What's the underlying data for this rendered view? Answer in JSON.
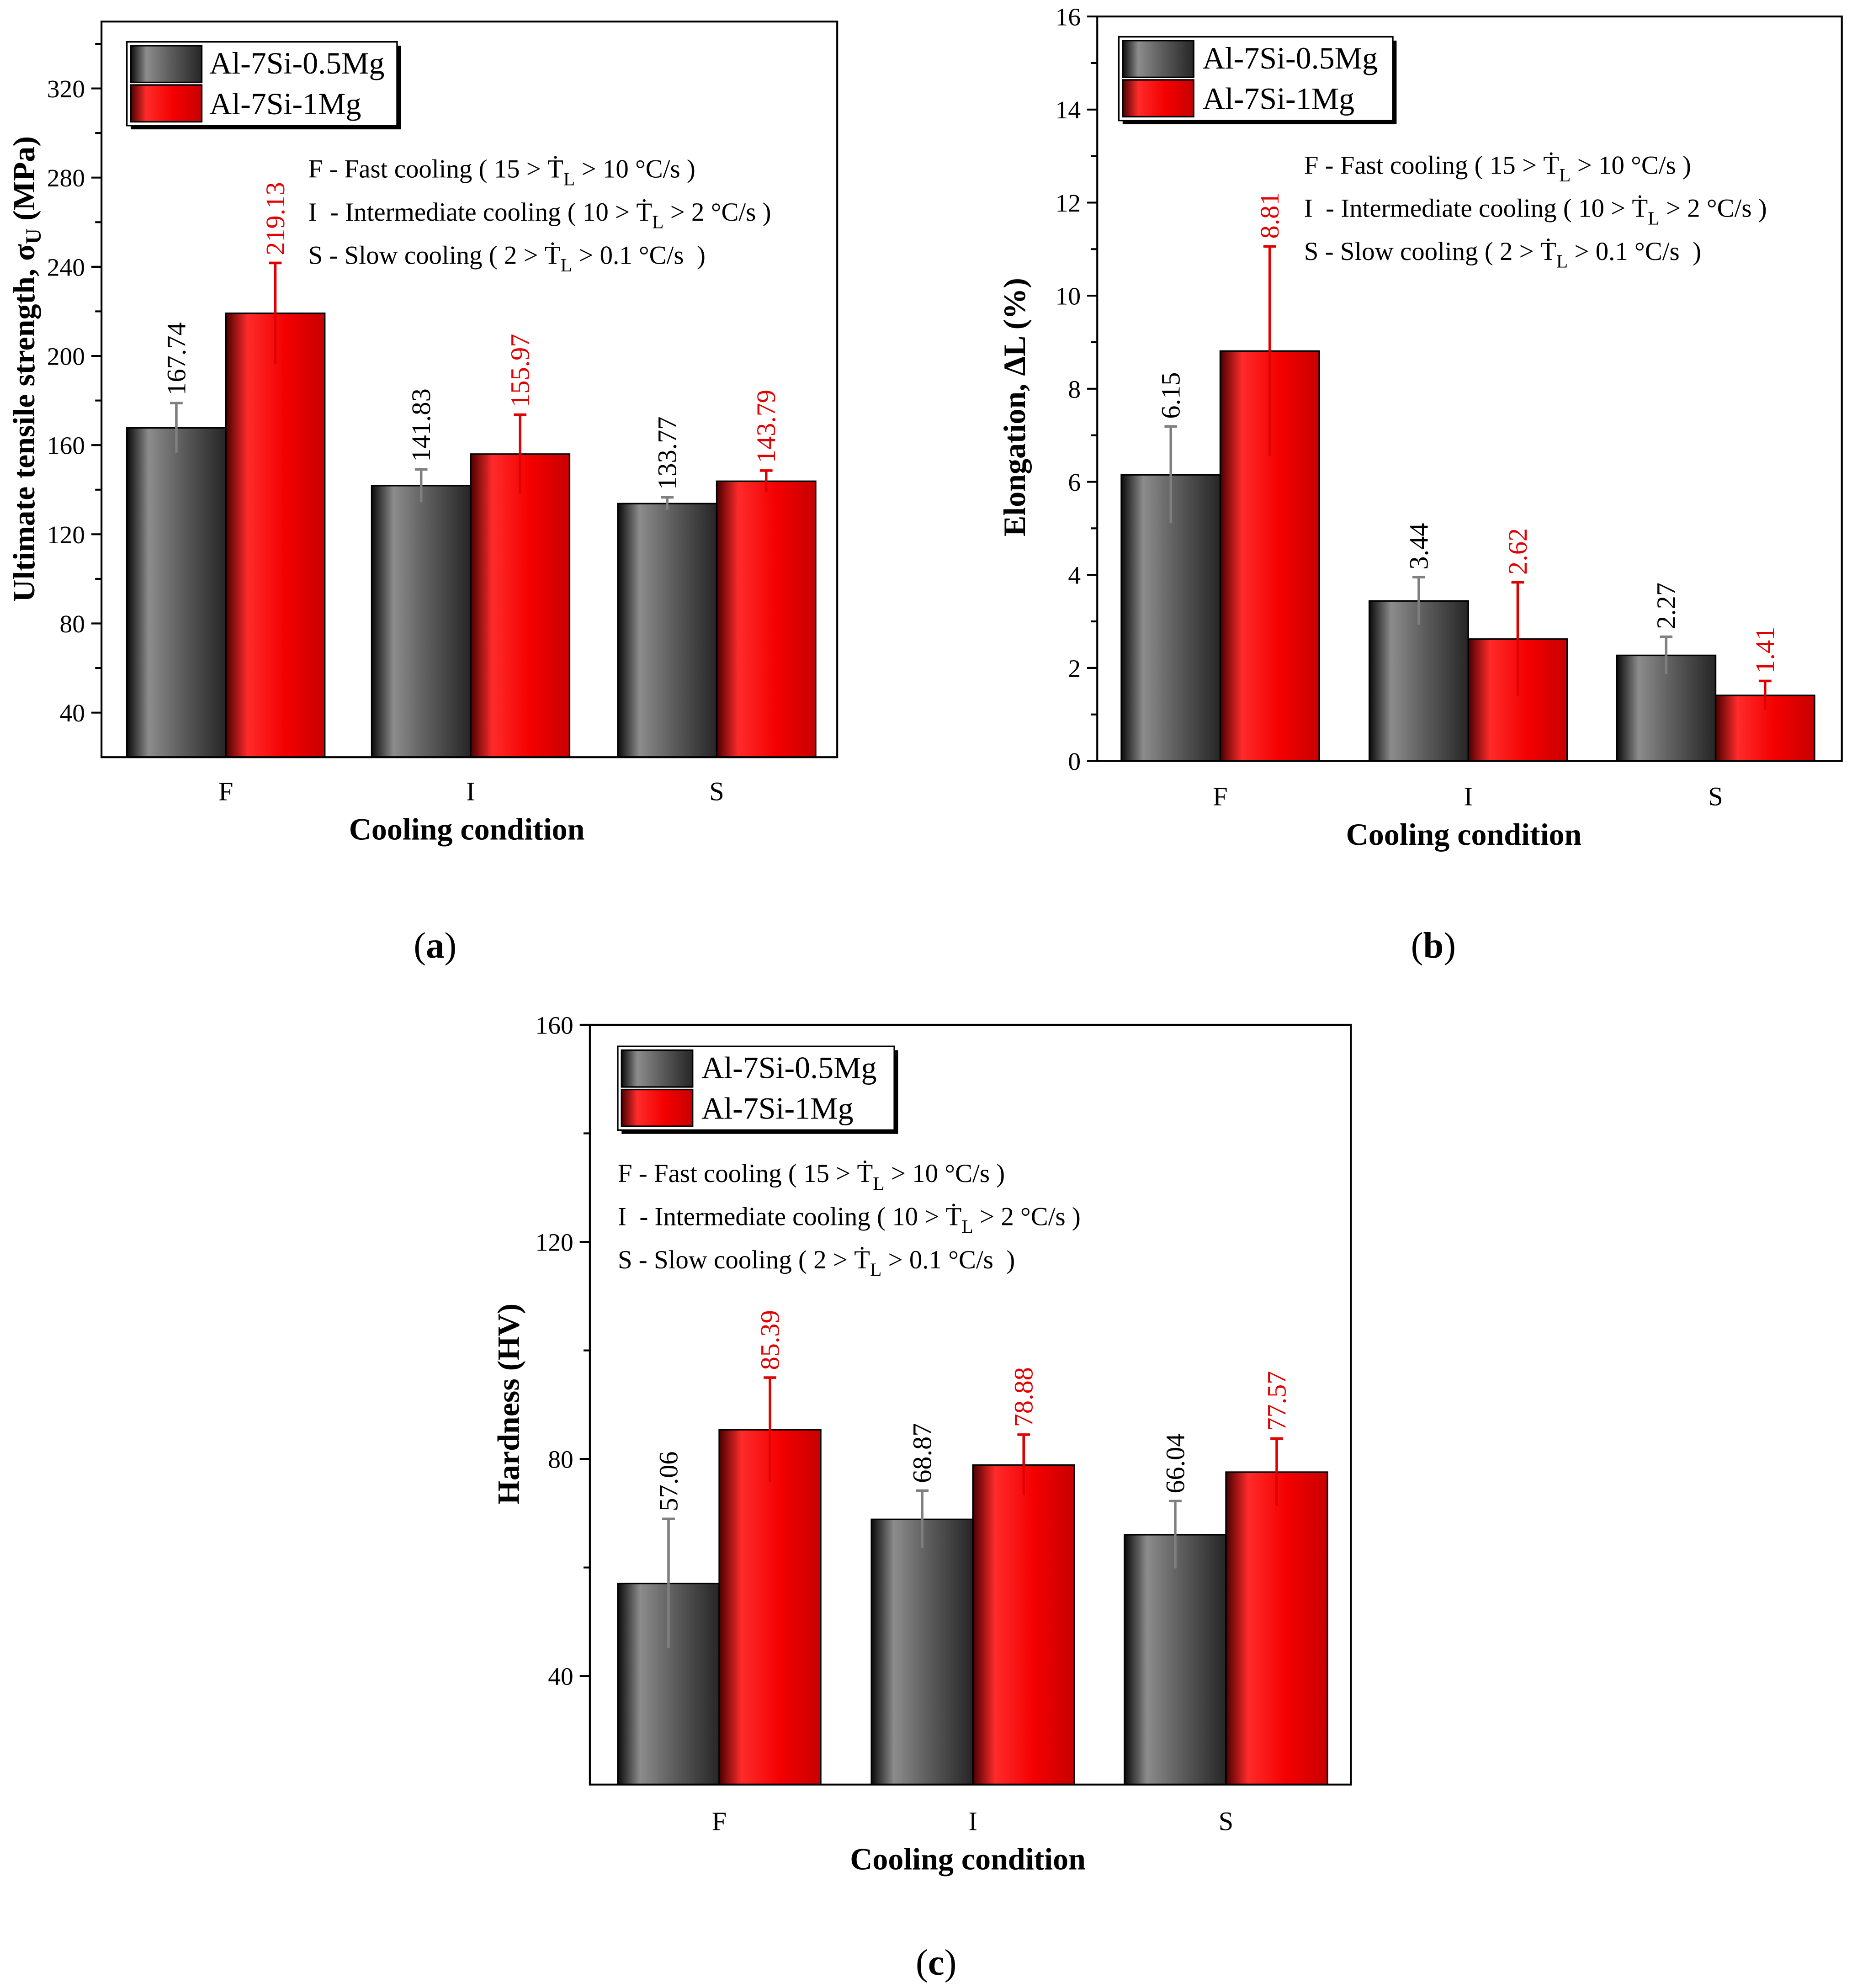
{
  "chart_data": [
    {
      "type": "bar",
      "panel_label": {
        "open": "(",
        "letter": "a",
        "close": ")"
      },
      "categories": [
        "F",
        "I",
        "S"
      ],
      "series": [
        {
          "name": "Al-7Si-0.5Mg",
          "color": "#5e5e5e",
          "error_color": "#7f7f7f",
          "label_color": "#000000",
          "values": [
            167.74,
            141.83,
            133.77
          ],
          "errors": [
            11.1,
            7.3,
            2.8
          ]
        },
        {
          "name": "Al-7Si-1Mg",
          "color": "#ff0000",
          "error_color": "#e00000",
          "label_color": "#e30000",
          "values": [
            219.13,
            155.97,
            143.79
          ],
          "errors": [
            22.6,
            17.7,
            4.8
          ]
        }
      ],
      "xlabel": "Cooling condition",
      "ylabel": {
        "main": "Ultimate tensile strength, σ",
        "sub": "U",
        "tail": " (MPa)"
      },
      "ylim": [
        20,
        350
      ],
      "yticks": [
        40,
        80,
        120,
        160,
        200,
        240,
        280,
        320
      ],
      "legend": "top-left",
      "annotations": [
        {
          "prefix": "F - Fast cooling ( 15 > ",
          "symbol": "Ṫ",
          "sub": "L",
          "suffix": " > 10 °C/s )"
        },
        {
          "prefix": "I  - Intermediate cooling ( 10 > ",
          "symbol": "Ṫ",
          "sub": "L",
          "suffix": " > 2 °C/s )"
        },
        {
          "prefix": "S - Slow cooling ( 2 > ",
          "symbol": "Ṫ",
          "sub": "L",
          "suffix": " > 0.1 °C/s  )"
        }
      ]
    },
    {
      "type": "bar",
      "panel_label": {
        "open": "(",
        "letter": "b",
        "close": ")"
      },
      "categories": [
        "F",
        "I",
        "S"
      ],
      "series": [
        {
          "name": "Al-7Si-0.5Mg",
          "color": "#5e5e5e",
          "error_color": "#7f7f7f",
          "label_color": "#000000",
          "values": [
            6.15,
            3.44,
            2.27
          ],
          "errors": [
            1.04,
            0.51,
            0.4
          ]
        },
        {
          "name": "Al-7Si-1Mg",
          "color": "#ff0000",
          "error_color": "#e00000",
          "label_color": "#e30000",
          "values": [
            8.81,
            2.62,
            1.41
          ],
          "errors": [
            2.25,
            1.22,
            0.31
          ]
        }
      ],
      "xlabel": "Cooling condition",
      "ylabel": {
        "main": "Elongation, ΔL (%)"
      },
      "ylim": [
        0,
        16
      ],
      "yticks": [
        0,
        2,
        4,
        6,
        8,
        10,
        12,
        14,
        16
      ],
      "legend": "top-left",
      "annotations": [
        {
          "prefix": "F - Fast cooling ( 15 > ",
          "symbol": "Ṫ",
          "sub": "L",
          "suffix": " > 10 °C/s )"
        },
        {
          "prefix": "I  - Intermediate cooling ( 10 > ",
          "symbol": "Ṫ",
          "sub": "L",
          "suffix": " > 2 °C/s )"
        },
        {
          "prefix": "S - Slow cooling ( 2 > ",
          "symbol": "Ṫ",
          "sub": "L",
          "suffix": " > 0.1 °C/s  )"
        }
      ]
    },
    {
      "type": "bar",
      "panel_label": {
        "open": "(",
        "letter": "c",
        "close": ")"
      },
      "categories": [
        "F",
        "I",
        "S"
      ],
      "series": [
        {
          "name": "Al-7Si-0.5Mg",
          "color": "#5e5e5e",
          "error_color": "#7f7f7f",
          "label_color": "#000000",
          "values": [
            57.06,
            68.87,
            66.04
          ],
          "errors": [
            11.9,
            5.3,
            6.2
          ]
        },
        {
          "name": "Al-7Si-1Mg",
          "color": "#ff0000",
          "error_color": "#e00000",
          "label_color": "#e30000",
          "values": [
            85.39,
            78.88,
            77.57
          ],
          "errors": [
            9.6,
            5.6,
            6.2
          ]
        }
      ],
      "xlabel": "Cooling condition",
      "ylabel": {
        "main": "Hardness (HV)"
      },
      "ylim": [
        20,
        160
      ],
      "yticks": [
        40,
        80,
        120,
        160
      ],
      "legend": "top-left",
      "annotations": [
        {
          "prefix": "F - Fast cooling ( 15 > ",
          "symbol": "Ṫ",
          "sub": "L",
          "suffix": " > 10 °C/s )"
        },
        {
          "prefix": "I  - Intermediate cooling ( 10 > ",
          "symbol": "Ṫ",
          "sub": "L",
          "suffix": " > 2 °C/s )"
        },
        {
          "prefix": "S - Slow cooling ( 2 > ",
          "symbol": "Ṫ",
          "sub": "L",
          "suffix": " > 0.1 °C/s  )"
        }
      ]
    }
  ]
}
